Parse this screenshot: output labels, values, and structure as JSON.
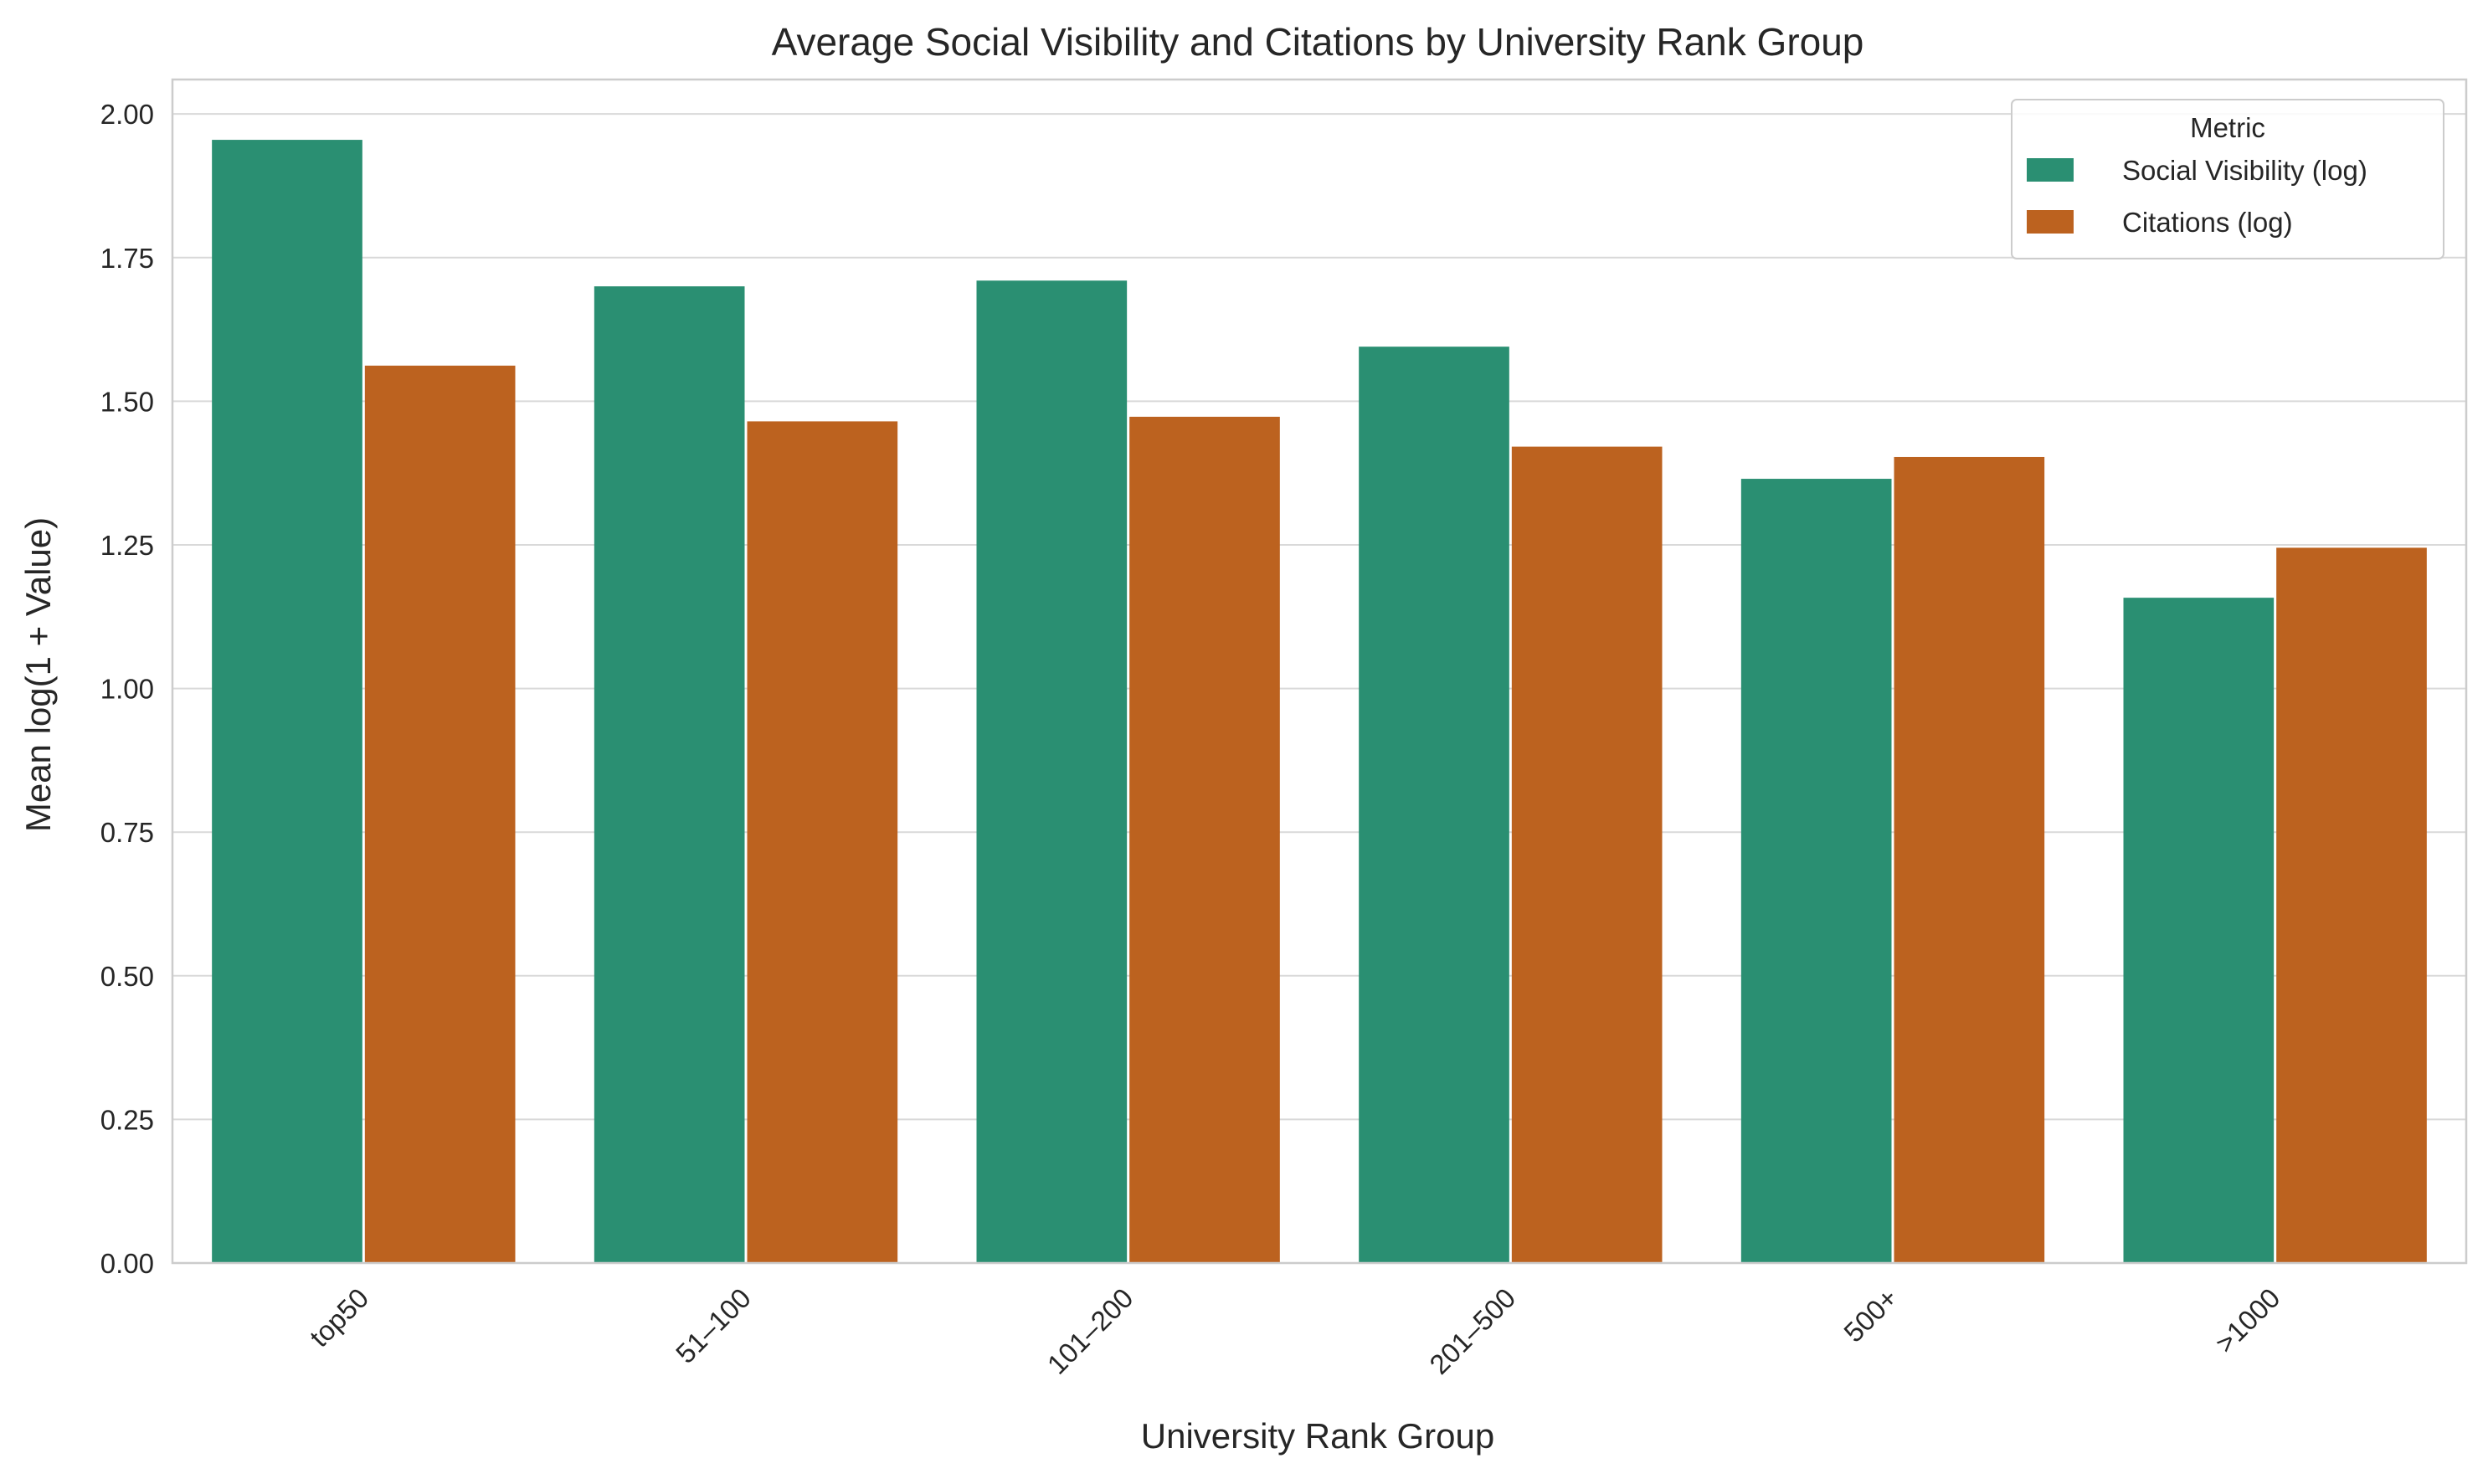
{
  "chart_data": {
    "type": "bar",
    "title": "Average Social Visibility and Citations by University Rank Group",
    "xlabel": "University Rank Group",
    "ylabel": "Mean log(1 + Value)",
    "categories": [
      "top50",
      "51–100",
      "101–200",
      "201–500",
      "500+",
      ">1000"
    ],
    "series": [
      {
        "name": "Social Visibility (log)",
        "color": "#2a8f72",
        "values": [
          1.955,
          1.7,
          1.71,
          1.595,
          1.365,
          1.158
        ]
      },
      {
        "name": "Citations (log)",
        "color": "#bc621f",
        "values": [
          1.562,
          1.465,
          1.473,
          1.421,
          1.403,
          1.245
        ]
      }
    ],
    "ylim": [
      0,
      2.06
    ],
    "yticks": [
      0.0,
      0.25,
      0.5,
      0.75,
      1.0,
      1.25,
      1.5,
      1.75,
      2.0
    ],
    "ytick_labels": [
      "0.00",
      "0.25",
      "0.50",
      "0.75",
      "1.00",
      "1.25",
      "1.50",
      "1.75",
      "2.00"
    ],
    "grid": "horizontal",
    "legend": {
      "title": "Metric",
      "placement": "top-right"
    }
  }
}
